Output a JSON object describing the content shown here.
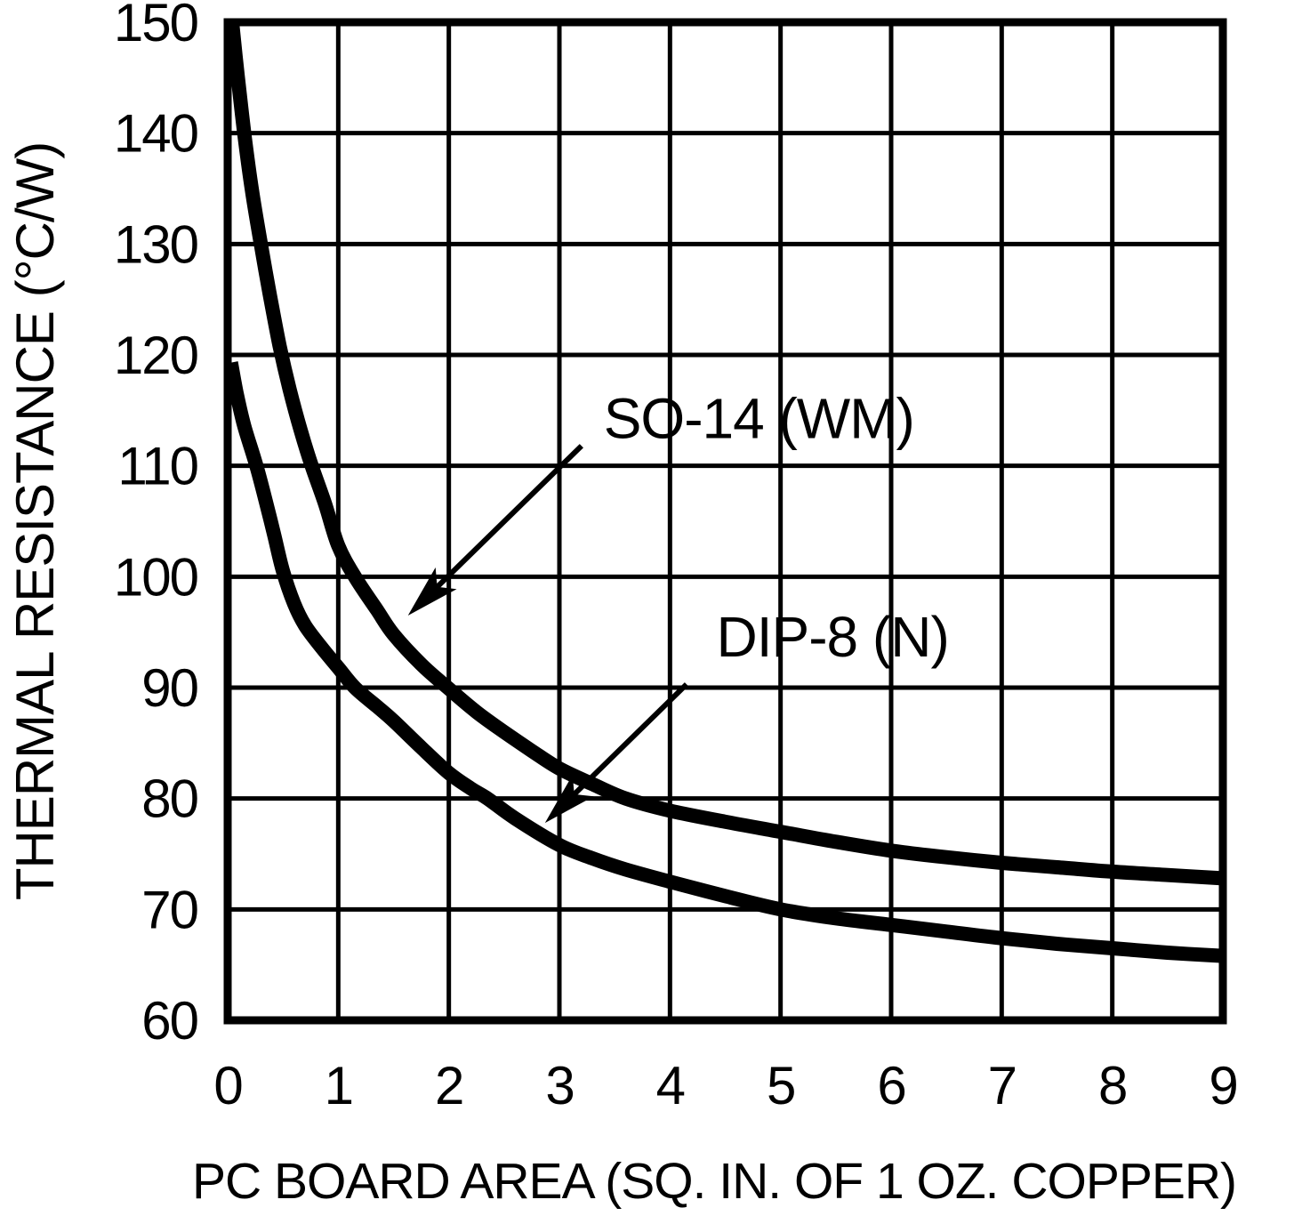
{
  "figure": {
    "background_color": "#ffffff",
    "ink_color": "#000000"
  },
  "chart_data": {
    "type": "line",
    "title": "",
    "xlabel": "PC BOARD AREA (SQ. IN. OF 1 OZ. COPPER)",
    "ylabel": "THERMAL RESISTANCE (°C/W)",
    "xlim": [
      0,
      9
    ],
    "ylim": [
      60,
      150
    ],
    "xticks": [
      0,
      1,
      2,
      3,
      4,
      5,
      6,
      7,
      8,
      9
    ],
    "yticks": [
      60,
      70,
      80,
      90,
      100,
      110,
      120,
      130,
      140,
      150
    ],
    "grid": true,
    "legend_position": "inline-annotations",
    "series": [
      {
        "name": "SO-14 (WM)",
        "points": [
          [
            0.04,
            150.0
          ],
          [
            0.09,
            145.2
          ],
          [
            0.15,
            140.0
          ],
          [
            0.22,
            134.8
          ],
          [
            0.3,
            130.0
          ],
          [
            0.38,
            125.5
          ],
          [
            0.47,
            120.8
          ],
          [
            0.56,
            116.9
          ],
          [
            0.66,
            113.2
          ],
          [
            0.76,
            110.0
          ],
          [
            0.88,
            106.6
          ],
          [
            1.0,
            102.8
          ],
          [
            1.15,
            100.0
          ],
          [
            1.35,
            97.0
          ],
          [
            1.5,
            94.8
          ],
          [
            1.75,
            92.1
          ],
          [
            2.0,
            89.9
          ],
          [
            2.25,
            87.8
          ],
          [
            2.5,
            86.0
          ],
          [
            2.75,
            84.3
          ],
          [
            3.0,
            82.7
          ],
          [
            3.3,
            81.3
          ],
          [
            3.6,
            80.0
          ],
          [
            4.0,
            78.9
          ],
          [
            4.5,
            77.9
          ],
          [
            5.0,
            77.0
          ],
          [
            5.5,
            76.1
          ],
          [
            6.0,
            75.3
          ],
          [
            6.5,
            74.7
          ],
          [
            7.0,
            74.2
          ],
          [
            7.5,
            73.8
          ],
          [
            8.0,
            73.4
          ],
          [
            8.5,
            73.1
          ],
          [
            9.0,
            72.8
          ]
        ]
      },
      {
        "name": "DIP-8 (N)",
        "points": [
          [
            0.03,
            119.3
          ],
          [
            0.08,
            116.6
          ],
          [
            0.15,
            113.6
          ],
          [
            0.26,
            110.0
          ],
          [
            0.35,
            106.6
          ],
          [
            0.42,
            103.8
          ],
          [
            0.5,
            100.5
          ],
          [
            0.6,
            97.6
          ],
          [
            0.7,
            95.6
          ],
          [
            0.85,
            93.6
          ],
          [
            1.0,
            91.8
          ],
          [
            1.15,
            90.0
          ],
          [
            1.35,
            88.3
          ],
          [
            1.5,
            87.0
          ],
          [
            1.75,
            84.6
          ],
          [
            2.0,
            82.3
          ],
          [
            2.2,
            80.9
          ],
          [
            2.35,
            80.0
          ],
          [
            2.6,
            78.2
          ],
          [
            3.0,
            75.8
          ],
          [
            3.3,
            74.6
          ],
          [
            3.6,
            73.6
          ],
          [
            4.0,
            72.5
          ],
          [
            4.5,
            71.2
          ],
          [
            5.0,
            70.0
          ],
          [
            5.5,
            69.2
          ],
          [
            6.0,
            68.6
          ],
          [
            6.5,
            68.0
          ],
          [
            7.0,
            67.4
          ],
          [
            7.5,
            66.9
          ],
          [
            8.0,
            66.5
          ],
          [
            8.5,
            66.1
          ],
          [
            9.0,
            65.8
          ]
        ]
      }
    ],
    "annotations": [
      {
        "text": "SO-14 (WM)",
        "text_anchor": [
          3.4,
          112.5
        ],
        "arrow_from": [
          3.2,
          111.8
        ],
        "arrow_to": [
          1.63,
          96.5
        ]
      },
      {
        "text": "DIP-8 (N)",
        "text_anchor": [
          4.42,
          92.8
        ],
        "arrow_from": [
          4.15,
          90.3
        ],
        "arrow_to": [
          2.87,
          77.8
        ]
      }
    ]
  }
}
